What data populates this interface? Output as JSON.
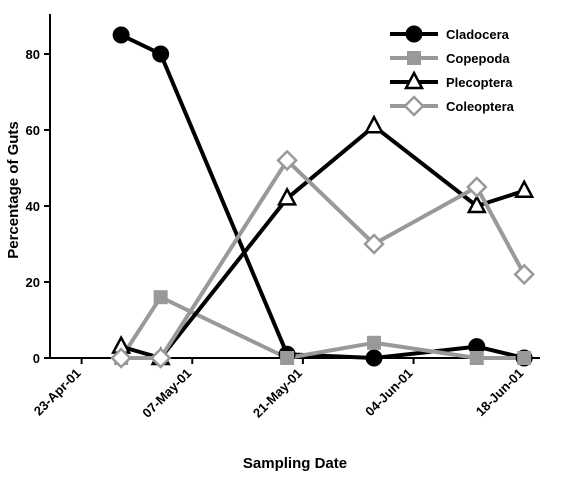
{
  "chart_data": {
    "type": "line",
    "x_label": "Sampling Date",
    "y_label": "Percentage of Guts",
    "x": [
      "2001-04-28",
      "2001-05-03",
      "2001-05-19",
      "2001-05-30",
      "2001-06-12",
      "2001-06-18"
    ],
    "xlim": [
      "2001-04-19",
      "2001-06-20"
    ],
    "xticks": [
      {
        "value": "2001-04-23",
        "label": "23-Apr-01"
      },
      {
        "value": "2001-05-07",
        "label": "07-May-01"
      },
      {
        "value": "2001-05-21",
        "label": "21-May-01"
      },
      {
        "value": "2001-06-04",
        "label": "04-Jun-01"
      },
      {
        "value": "2001-06-18",
        "label": "18-Jun-01"
      }
    ],
    "ylim": [
      0,
      90
    ],
    "yticks": [
      0,
      20,
      40,
      60,
      80
    ],
    "legend": "top-right",
    "series": [
      {
        "name": "Cladocera",
        "color": "#000000",
        "marker": "circle",
        "values": [
          85,
          80,
          1,
          0,
          3,
          0
        ]
      },
      {
        "name": "Copepoda",
        "color": "#999999",
        "marker": "square",
        "values": [
          0,
          16,
          0,
          4,
          0,
          0
        ]
      },
      {
        "name": "Plecoptera",
        "color": "#000000",
        "marker": "triangle",
        "values": [
          3,
          0,
          42,
          61,
          40,
          44
        ]
      },
      {
        "name": "Coleoptera",
        "color": "#999999",
        "marker": "diamond",
        "values": [
          0,
          0,
          52,
          30,
          45,
          22
        ]
      }
    ]
  }
}
